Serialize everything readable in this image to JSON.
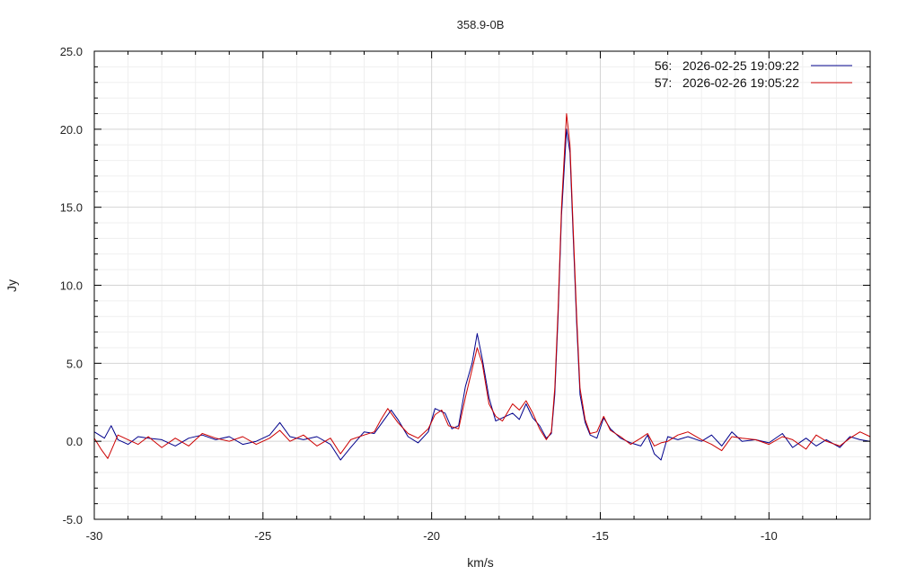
{
  "chart_data": {
    "type": "line",
    "title": "358.9-0B",
    "xlabel": "km/s",
    "ylabel": "Jy",
    "xlim": [
      -30,
      -7.0
    ],
    "ylim": [
      -5,
      25
    ],
    "xticks": [
      -30,
      -25,
      -20,
      -15,
      -10
    ],
    "xtick_labels": [
      "-30",
      "-25",
      "-20",
      "-15",
      "-10"
    ],
    "yticks": [
      -5,
      0,
      5,
      10,
      15,
      20,
      25
    ],
    "ytick_labels": [
      "-5.0",
      "0.0",
      "5.0",
      "10.0",
      "15.0",
      "20.0",
      "25.0"
    ],
    "grid": true,
    "legend_position": "top-right",
    "series": [
      {
        "name": "56:   2026-02-25 19:09:22",
        "color": "#00008b",
        "points": [
          [
            -30.0,
            0.6
          ],
          [
            -29.7,
            0.2
          ],
          [
            -29.5,
            1.0
          ],
          [
            -29.3,
            0.1
          ],
          [
            -29.0,
            -0.2
          ],
          [
            -28.7,
            0.3
          ],
          [
            -28.4,
            0.2
          ],
          [
            -28.0,
            0.1
          ],
          [
            -27.6,
            -0.3
          ],
          [
            -27.2,
            0.2
          ],
          [
            -26.8,
            0.4
          ],
          [
            -26.4,
            0.1
          ],
          [
            -26.0,
            0.3
          ],
          [
            -25.6,
            -0.2
          ],
          [
            -25.2,
            0.0
          ],
          [
            -24.8,
            0.4
          ],
          [
            -24.5,
            1.2
          ],
          [
            -24.2,
            0.3
          ],
          [
            -23.8,
            0.1
          ],
          [
            -23.4,
            0.3
          ],
          [
            -23.0,
            -0.2
          ],
          [
            -22.7,
            -1.2
          ],
          [
            -22.4,
            -0.4
          ],
          [
            -22.0,
            0.6
          ],
          [
            -21.7,
            0.5
          ],
          [
            -21.5,
            1.1
          ],
          [
            -21.2,
            2.0
          ],
          [
            -21.0,
            1.4
          ],
          [
            -20.7,
            0.3
          ],
          [
            -20.4,
            -0.1
          ],
          [
            -20.1,
            0.6
          ],
          [
            -19.9,
            2.1
          ],
          [
            -19.6,
            1.8
          ],
          [
            -19.4,
            0.8
          ],
          [
            -19.2,
            1.0
          ],
          [
            -19.0,
            3.5
          ],
          [
            -18.8,
            5.0
          ],
          [
            -18.65,
            6.9
          ],
          [
            -18.5,
            5.3
          ],
          [
            -18.3,
            2.8
          ],
          [
            -18.1,
            1.3
          ],
          [
            -17.9,
            1.5
          ],
          [
            -17.6,
            1.8
          ],
          [
            -17.4,
            1.4
          ],
          [
            -17.2,
            2.4
          ],
          [
            -17.0,
            1.5
          ],
          [
            -16.8,
            1.0
          ],
          [
            -16.6,
            0.2
          ],
          [
            -16.45,
            0.5
          ],
          [
            -16.35,
            3.0
          ],
          [
            -16.25,
            8.0
          ],
          [
            -16.15,
            14.5
          ],
          [
            -16.0,
            20.0
          ],
          [
            -15.9,
            18.5
          ],
          [
            -15.8,
            13.0
          ],
          [
            -15.7,
            7.5
          ],
          [
            -15.6,
            3.0
          ],
          [
            -15.45,
            1.2
          ],
          [
            -15.3,
            0.4
          ],
          [
            -15.1,
            0.2
          ],
          [
            -14.9,
            1.5
          ],
          [
            -14.7,
            0.8
          ],
          [
            -14.4,
            0.2
          ],
          [
            -14.1,
            -0.1
          ],
          [
            -13.8,
            -0.3
          ],
          [
            -13.6,
            0.4
          ],
          [
            -13.4,
            -0.8
          ],
          [
            -13.2,
            -1.2
          ],
          [
            -13.0,
            0.3
          ],
          [
            -12.7,
            0.1
          ],
          [
            -12.4,
            0.3
          ],
          [
            -12.0,
            0.0
          ],
          [
            -11.7,
            0.4
          ],
          [
            -11.4,
            -0.3
          ],
          [
            -11.1,
            0.6
          ],
          [
            -10.8,
            0.0
          ],
          [
            -10.4,
            0.1
          ],
          [
            -10.0,
            -0.1
          ],
          [
            -9.6,
            0.5
          ],
          [
            -9.3,
            -0.4
          ],
          [
            -8.9,
            0.2
          ],
          [
            -8.6,
            -0.3
          ],
          [
            -8.3,
            0.1
          ],
          [
            -7.9,
            -0.4
          ],
          [
            -7.6,
            0.3
          ],
          [
            -7.3,
            0.1
          ],
          [
            -7.0,
            0.0
          ]
        ]
      },
      {
        "name": "57:   2026-02-26 19:05:22",
        "color": "#cc0000",
        "points": [
          [
            -30.0,
            0.2
          ],
          [
            -29.8,
            -0.5
          ],
          [
            -29.6,
            -1.1
          ],
          [
            -29.3,
            0.4
          ],
          [
            -29.0,
            0.1
          ],
          [
            -28.7,
            -0.2
          ],
          [
            -28.4,
            0.3
          ],
          [
            -28.0,
            -0.4
          ],
          [
            -27.6,
            0.2
          ],
          [
            -27.2,
            -0.3
          ],
          [
            -26.8,
            0.5
          ],
          [
            -26.4,
            0.2
          ],
          [
            -26.0,
            0.0
          ],
          [
            -25.6,
            0.3
          ],
          [
            -25.2,
            -0.2
          ],
          [
            -24.8,
            0.2
          ],
          [
            -24.5,
            0.7
          ],
          [
            -24.2,
            0.0
          ],
          [
            -23.8,
            0.4
          ],
          [
            -23.4,
            -0.3
          ],
          [
            -23.0,
            0.2
          ],
          [
            -22.7,
            -0.8
          ],
          [
            -22.4,
            0.1
          ],
          [
            -22.0,
            0.4
          ],
          [
            -21.7,
            0.6
          ],
          [
            -21.5,
            1.4
          ],
          [
            -21.3,
            2.1
          ],
          [
            -21.0,
            1.2
          ],
          [
            -20.7,
            0.5
          ],
          [
            -20.4,
            0.2
          ],
          [
            -20.1,
            0.8
          ],
          [
            -19.9,
            1.7
          ],
          [
            -19.7,
            2.0
          ],
          [
            -19.5,
            1.0
          ],
          [
            -19.2,
            0.8
          ],
          [
            -19.0,
            2.8
          ],
          [
            -18.8,
            4.6
          ],
          [
            -18.65,
            6.0
          ],
          [
            -18.5,
            5.0
          ],
          [
            -18.3,
            2.4
          ],
          [
            -18.1,
            1.6
          ],
          [
            -17.9,
            1.3
          ],
          [
            -17.6,
            2.4
          ],
          [
            -17.4,
            2.0
          ],
          [
            -17.2,
            2.6
          ],
          [
            -17.0,
            1.8
          ],
          [
            -16.8,
            0.8
          ],
          [
            -16.6,
            0.1
          ],
          [
            -16.45,
            0.6
          ],
          [
            -16.35,
            3.4
          ],
          [
            -16.25,
            8.5
          ],
          [
            -16.15,
            15.0
          ],
          [
            -16.0,
            21.0
          ],
          [
            -15.9,
            19.0
          ],
          [
            -15.8,
            13.5
          ],
          [
            -15.7,
            8.0
          ],
          [
            -15.6,
            3.4
          ],
          [
            -15.45,
            1.4
          ],
          [
            -15.3,
            0.5
          ],
          [
            -15.1,
            0.6
          ],
          [
            -14.9,
            1.6
          ],
          [
            -14.7,
            0.7
          ],
          [
            -14.4,
            0.3
          ],
          [
            -14.1,
            -0.2
          ],
          [
            -13.8,
            0.2
          ],
          [
            -13.6,
            0.5
          ],
          [
            -13.4,
            -0.3
          ],
          [
            -13.2,
            -0.1
          ],
          [
            -13.0,
            0.0
          ],
          [
            -12.7,
            0.4
          ],
          [
            -12.4,
            0.6
          ],
          [
            -12.0,
            0.1
          ],
          [
            -11.7,
            -0.2
          ],
          [
            -11.4,
            -0.6
          ],
          [
            -11.1,
            0.3
          ],
          [
            -10.8,
            0.2
          ],
          [
            -10.4,
            0.1
          ],
          [
            -10.0,
            -0.2
          ],
          [
            -9.6,
            0.3
          ],
          [
            -9.3,
            0.1
          ],
          [
            -8.9,
            -0.5
          ],
          [
            -8.6,
            0.4
          ],
          [
            -8.3,
            0.0
          ],
          [
            -7.9,
            -0.3
          ],
          [
            -7.6,
            0.2
          ],
          [
            -7.3,
            0.6
          ],
          [
            -7.0,
            0.3
          ]
        ]
      }
    ]
  }
}
